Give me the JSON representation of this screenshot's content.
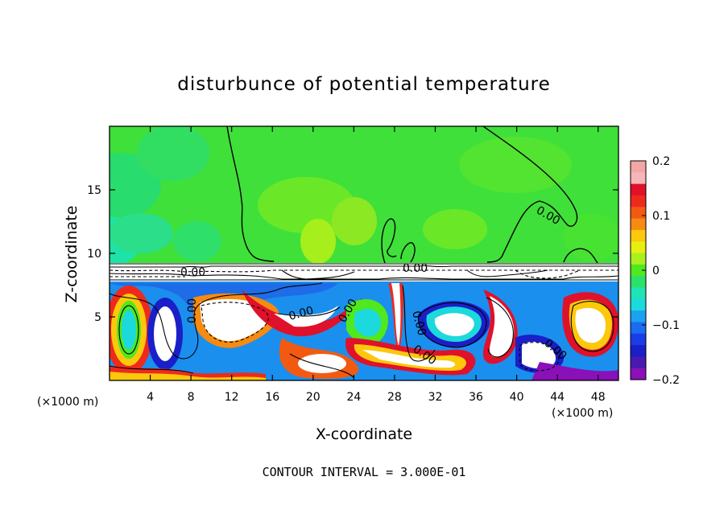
{
  "chart_data": {
    "type": "heatmap",
    "title": "disturbunce of potential temperature",
    "xlabel": "X-coordinate",
    "ylabel": "Z-coordinate",
    "x_unit": "(×1000 m)",
    "y_unit": "(×1000 m)",
    "xlim": [
      0,
      50
    ],
    "ylim": [
      0,
      20
    ],
    "xticks": [
      4,
      8,
      12,
      16,
      20,
      24,
      28,
      32,
      36,
      40,
      44,
      48
    ],
    "yticks": [
      5,
      10,
      15
    ],
    "contour_interval_text": "CONTOUR INTERVAL = 3.000E-01",
    "contour_labels": [
      "0.00",
      "0.00",
      "0.00",
      "0.00",
      "0.00",
      "0.00",
      "0.00",
      "0.00",
      "0.00"
    ],
    "colorbar": {
      "range": [
        -0.2,
        0.2
      ],
      "ticks": [
        "0.2",
        "0.1",
        "0",
        "−0.1",
        "−0.2"
      ],
      "colors": [
        "#f4a6a6",
        "#f7b6b6",
        "#e0112a",
        "#ee2a1d",
        "#f25a12",
        "#f78a10",
        "#fbc80c",
        "#e6ef10",
        "#aaf01d",
        "#50e81e",
        "#2be06b",
        "#1fe3b6",
        "#1cd9dc",
        "#1aa2f0",
        "#1a6cf0",
        "#1a3de8",
        "#1a1fc8",
        "#4a1ab0",
        "#8a10b8"
      ]
    }
  }
}
